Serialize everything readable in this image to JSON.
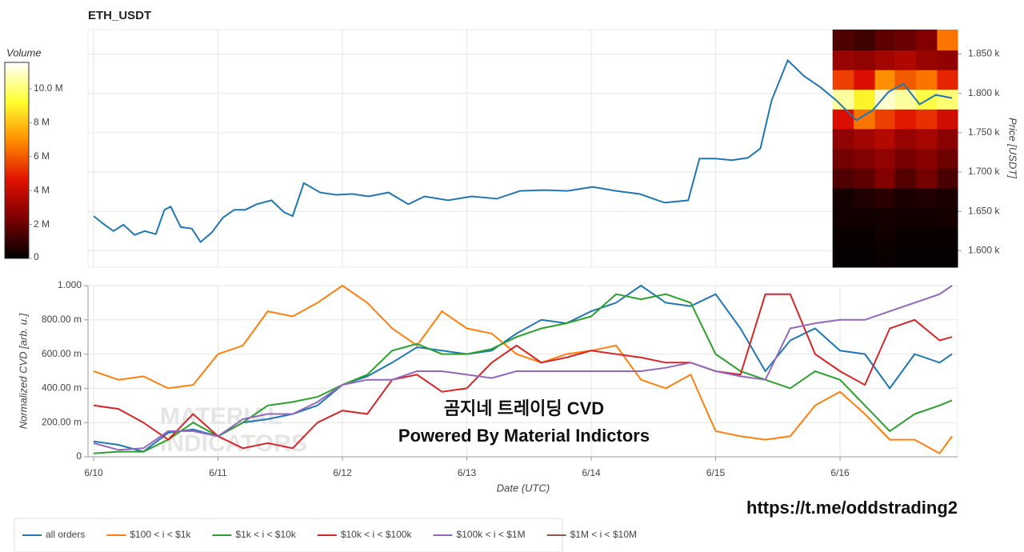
{
  "chart_data": [
    {
      "type": "line",
      "title": "ETH_USDT",
      "ylabel": "Price [USDT]",
      "xlim": [
        -0.045,
        6.945
      ],
      "ylim": [
        1579,
        1881
      ],
      "yticks": [
        {
          "value": 1600,
          "label": "1.600 k"
        },
        {
          "value": 1650,
          "label": "1.650 k"
        },
        {
          "value": 1700,
          "label": "1.700 k"
        },
        {
          "value": 1750,
          "label": "1.750 k"
        },
        {
          "value": 1800,
          "label": "1.800 k"
        },
        {
          "value": 1850,
          "label": "1.850 k"
        }
      ],
      "grid": true,
      "x": [
        0,
        0.08,
        0.16,
        0.24,
        0.33,
        0.41,
        0.5,
        0.57,
        0.62,
        0.7,
        0.79,
        0.86,
        0.95,
        1.04,
        1.13,
        1.22,
        1.31,
        1.43,
        1.53,
        1.6,
        1.69,
        1.82,
        1.95,
        2.08,
        2.21,
        2.37,
        2.53,
        2.66,
        2.85,
        3.04,
        3.24,
        3.43,
        3.62,
        3.81,
        4.01,
        4.2,
        4.39,
        4.59,
        4.78,
        4.87,
        5.0,
        5.13,
        5.26,
        5.36,
        5.45,
        5.58,
        5.71,
        5.84,
        5.97,
        6.13,
        6.26,
        6.39,
        6.51,
        6.64,
        6.77,
        6.9
      ],
      "series": [
        {
          "color": "#1f77b4",
          "values": [
            1644,
            1634,
            1625,
            1633,
            1620,
            1625,
            1621,
            1652,
            1656,
            1630,
            1628,
            1611,
            1623,
            1642,
            1652,
            1652,
            1659,
            1664,
            1649,
            1644,
            1686,
            1674,
            1671,
            1672,
            1669,
            1674,
            1659,
            1669,
            1664,
            1669,
            1666,
            1676,
            1677,
            1676,
            1681,
            1676,
            1672,
            1661,
            1664,
            1717,
            1717,
            1715,
            1718,
            1730,
            1791,
            1842,
            1822,
            1808,
            1791,
            1766,
            1778,
            1802,
            1812,
            1786,
            1798,
            1794
          ]
        }
      ],
      "heatmap": {
        "colorbar_label": "Volume",
        "colorscale": [
          "#000000",
          "#7a0000",
          "#e01000",
          "#ff8c00",
          "#ffff30",
          "#ffffff"
        ],
        "clim": [
          0,
          11560000
        ],
        "cticks": [
          0,
          {
            "value": 2000000,
            "label": "2 M"
          },
          {
            "value": 4000000,
            "label": "4 M"
          },
          {
            "value": 6000000,
            "label": "6 M"
          },
          {
            "value": 8000000,
            "label": "8 M"
          },
          {
            "value": 10000000,
            "label": "10.0 M"
          }
        ],
        "x_edges": [
          5.94,
          6.11,
          6.28,
          6.44,
          6.61,
          6.78,
          6.945
        ],
        "y_edges": [
          1579,
          1605,
          1630,
          1655,
          1680,
          1705,
          1730,
          1755,
          1780,
          1805,
          1830,
          1855,
          1881
        ],
        "values": [
          [
            100000,
            100000,
            200000,
            100000,
            100000,
            100000
          ],
          [
            200000,
            200000,
            300000,
            200000,
            200000,
            200000
          ],
          [
            300000,
            300000,
            400000,
            300000,
            300000,
            400000
          ],
          [
            400000,
            600000,
            800000,
            500000,
            600000,
            500000
          ],
          [
            1500000,
            1800000,
            2500000,
            1600000,
            2200000,
            1400000
          ],
          [
            2200000,
            2500000,
            2800000,
            2300000,
            2600000,
            2100000
          ],
          [
            2800000,
            3200000,
            3600000,
            3000000,
            3300000,
            2700000
          ],
          [
            4500000,
            6500000,
            5500000,
            4800000,
            5200000,
            4200000
          ],
          [
            10500000,
            9000000,
            11000000,
            10500000,
            9500000,
            10000000
          ],
          [
            5500000,
            4500000,
            7000000,
            6000000,
            6500000,
            5000000
          ],
          [
            3000000,
            2800000,
            3200000,
            3500000,
            3000000,
            2800000
          ],
          [
            1500000,
            1200000,
            1800000,
            2000000,
            2500000,
            6500000
          ]
        ]
      }
    },
    {
      "type": "line",
      "xlabel": "Date (UTC)",
      "ylabel": "Normalized CVD [arb. u.]",
      "xlim": [
        -0.045,
        6.945
      ],
      "ylim": [
        0,
        1
      ],
      "xticks": [
        {
          "value": 0,
          "label": "6/10"
        },
        {
          "value": 1,
          "label": "6/11"
        },
        {
          "value": 2,
          "label": "6/12"
        },
        {
          "value": 3,
          "label": "6/13"
        },
        {
          "value": 4,
          "label": "6/14"
        },
        {
          "value": 5,
          "label": "6/15"
        },
        {
          "value": 6,
          "label": "6/16"
        }
      ],
      "yticks": [
        0,
        {
          "value": 0.2,
          "label": "200.00 m"
        },
        {
          "value": 0.4,
          "label": "400.00 m"
        },
        {
          "value": 0.6,
          "label": "600.00 m"
        },
        {
          "value": 0.8,
          "label": "800.00 m"
        },
        {
          "value": 1,
          "label": "1.000"
        }
      ],
      "grid": true,
      "legend": "bottom-left",
      "x": [
        0,
        0.2,
        0.4,
        0.6,
        0.8,
        1.0,
        1.2,
        1.4,
        1.6,
        1.8,
        2.0,
        2.2,
        2.4,
        2.6,
        2.8,
        3.0,
        3.2,
        3.4,
        3.6,
        3.8,
        4.0,
        4.2,
        4.4,
        4.6,
        4.8,
        5.0,
        5.2,
        5.4,
        5.6,
        5.8,
        6.0,
        6.2,
        6.4,
        6.6,
        6.8,
        6.9
      ],
      "series": [
        {
          "name": "all orders",
          "color": "#1f77b4",
          "values": [
            0.09,
            0.07,
            0.03,
            0.14,
            0.16,
            0.12,
            0.2,
            0.22,
            0.25,
            0.3,
            0.42,
            0.47,
            0.55,
            0.64,
            0.62,
            0.6,
            0.62,
            0.72,
            0.8,
            0.78,
            0.85,
            0.9,
            1.0,
            0.9,
            0.88,
            0.95,
            0.75,
            0.5,
            0.68,
            0.75,
            0.62,
            0.6,
            0.4,
            0.6,
            0.55,
            0.6
          ]
        },
        {
          "name": "$100 < i < $1k",
          "color": "#ff7f0e",
          "values": [
            0.5,
            0.45,
            0.47,
            0.4,
            0.42,
            0.6,
            0.65,
            0.85,
            0.82,
            0.9,
            1.0,
            0.9,
            0.75,
            0.65,
            0.85,
            0.75,
            0.72,
            0.6,
            0.55,
            0.6,
            0.62,
            0.65,
            0.45,
            0.4,
            0.48,
            0.15,
            0.12,
            0.1,
            0.12,
            0.3,
            0.38,
            0.25,
            0.1,
            0.1,
            0.02,
            0.12
          ]
        },
        {
          "name": "$1k < i < $10k",
          "color": "#2ca02c",
          "values": [
            0.02,
            0.03,
            0.03,
            0.1,
            0.2,
            0.12,
            0.2,
            0.3,
            0.32,
            0.35,
            0.42,
            0.48,
            0.62,
            0.66,
            0.6,
            0.6,
            0.63,
            0.7,
            0.75,
            0.78,
            0.82,
            0.95,
            0.92,
            0.95,
            0.9,
            0.6,
            0.5,
            0.45,
            0.4,
            0.5,
            0.45,
            0.3,
            0.15,
            0.25,
            0.3,
            0.33
          ]
        },
        {
          "name": "$10k < i < $100k",
          "color": "#d62728",
          "values": [
            0.3,
            0.28,
            0.2,
            0.1,
            0.25,
            0.12,
            0.05,
            0.08,
            0.05,
            0.2,
            0.27,
            0.25,
            0.45,
            0.48,
            0.38,
            0.4,
            0.55,
            0.65,
            0.55,
            0.58,
            0.62,
            0.6,
            0.58,
            0.55,
            0.55,
            0.5,
            0.48,
            0.95,
            0.95,
            0.6,
            0.5,
            0.42,
            0.75,
            0.8,
            0.68,
            0.7
          ]
        },
        {
          "name": "$100k < i < $1M",
          "color": "#9467bd",
          "values": [
            0.08,
            0.04,
            0.05,
            0.15,
            0.15,
            0.12,
            0.22,
            0.25,
            0.25,
            0.32,
            0.42,
            0.45,
            0.45,
            0.5,
            0.5,
            0.48,
            0.46,
            0.5,
            0.5,
            0.5,
            0.5,
            0.5,
            0.5,
            0.52,
            0.55,
            0.5,
            0.47,
            0.45,
            0.75,
            0.78,
            0.8,
            0.8,
            0.85,
            0.9,
            0.95,
            1.0
          ]
        },
        {
          "name": "$1M < i < $10M",
          "color": "#8c564b"
        }
      ],
      "watermark": [
        "MATERIAL",
        "INDICATORS"
      ]
    }
  ],
  "overlay": {
    "title": "곰지네 트레이딩 CVD",
    "subtitle": "Powered By Material Indictors",
    "link": "https://t.me/oddstrading2"
  }
}
